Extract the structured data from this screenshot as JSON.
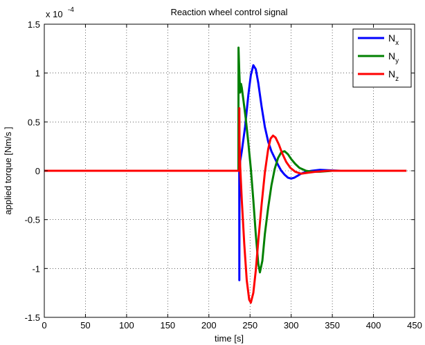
{
  "chart_data": {
    "type": "line",
    "title": "Reaction wheel control signal",
    "xlabel": "time [s]",
    "ylabel": "applied torque [Nm/s ]",
    "y_scale_label": "x 10",
    "y_scale_exponent": "-4",
    "xlim": [
      0,
      450
    ],
    "ylim": [
      -1.5,
      1.5
    ],
    "xticks": [
      "0",
      "50",
      "100",
      "150",
      "200",
      "250",
      "300",
      "350",
      "400",
      "450"
    ],
    "yticks": [
      "-1.5",
      "-1",
      "-0.5",
      "0",
      "0.5",
      "1",
      "1.5"
    ],
    "grid": true,
    "legend_position": "top-right",
    "series": [
      {
        "name": "N",
        "subscript": "x",
        "color": "#0000ff",
        "points": [
          [
            0,
            0
          ],
          [
            236.9,
            0
          ],
          [
            237,
            -1.12
          ],
          [
            237.2,
            -0.2
          ],
          [
            238,
            0.1
          ],
          [
            240,
            0.2
          ],
          [
            244,
            0.45
          ],
          [
            248,
            0.78
          ],
          [
            251,
            0.98
          ],
          [
            254,
            1.08
          ],
          [
            257,
            1.04
          ],
          [
            260,
            0.9
          ],
          [
            264,
            0.66
          ],
          [
            268,
            0.45
          ],
          [
            272,
            0.3
          ],
          [
            276,
            0.2
          ],
          [
            280,
            0.13
          ],
          [
            284,
            0.06
          ],
          [
            288,
            0.0
          ],
          [
            292,
            -0.04
          ],
          [
            296,
            -0.07
          ],
          [
            300,
            -0.08
          ],
          [
            304,
            -0.07
          ],
          [
            308,
            -0.05
          ],
          [
            312,
            -0.03
          ],
          [
            318,
            -0.01
          ],
          [
            325,
            0.0
          ],
          [
            335,
            0.01
          ],
          [
            345,
            0.005
          ],
          [
            360,
            0.0
          ],
          [
            440,
            0.0
          ]
        ]
      },
      {
        "name": "N",
        "subscript": "y",
        "color": "#008000",
        "points": [
          [
            0,
            0
          ],
          [
            235.9,
            0
          ],
          [
            236,
            1.26
          ],
          [
            237,
            1.0
          ],
          [
            238,
            0.8
          ],
          [
            239,
            0.89
          ],
          [
            240,
            0.85
          ],
          [
            242,
            0.72
          ],
          [
            245,
            0.52
          ],
          [
            248,
            0.28
          ],
          [
            251,
            0.02
          ],
          [
            254,
            -0.3
          ],
          [
            257,
            -0.65
          ],
          [
            260,
            -0.95
          ],
          [
            262,
            -1.04
          ],
          [
            265,
            -0.92
          ],
          [
            268,
            -0.65
          ],
          [
            272,
            -0.38
          ],
          [
            276,
            -0.15
          ],
          [
            280,
            0.02
          ],
          [
            284,
            0.13
          ],
          [
            288,
            0.19
          ],
          [
            292,
            0.2
          ],
          [
            296,
            0.17
          ],
          [
            300,
            0.12
          ],
          [
            305,
            0.07
          ],
          [
            310,
            0.03
          ],
          [
            318,
            0.0
          ],
          [
            325,
            -0.01
          ],
          [
            335,
            -0.01
          ],
          [
            350,
            0.0
          ],
          [
            440,
            0.0
          ]
        ]
      },
      {
        "name": "N",
        "subscript": "z",
        "color": "#ff0000",
        "points": [
          [
            0,
            0
          ],
          [
            236.9,
            0
          ],
          [
            237,
            0.64
          ],
          [
            237.2,
            0.3
          ],
          [
            238,
            0.05
          ],
          [
            240,
            -0.3
          ],
          [
            243,
            -0.75
          ],
          [
            246,
            -1.12
          ],
          [
            249,
            -1.32
          ],
          [
            251,
            -1.35
          ],
          [
            254,
            -1.25
          ],
          [
            257,
            -1.02
          ],
          [
            260,
            -0.72
          ],
          [
            264,
            -0.35
          ],
          [
            268,
            -0.02
          ],
          [
            272,
            0.22
          ],
          [
            275,
            0.33
          ],
          [
            278,
            0.36
          ],
          [
            281,
            0.34
          ],
          [
            285,
            0.27
          ],
          [
            289,
            0.18
          ],
          [
            294,
            0.09
          ],
          [
            299,
            0.03
          ],
          [
            305,
            -0.01
          ],
          [
            312,
            -0.03
          ],
          [
            320,
            -0.02
          ],
          [
            330,
            -0.01
          ],
          [
            345,
            0.0
          ],
          [
            440,
            0.0
          ]
        ]
      }
    ]
  }
}
